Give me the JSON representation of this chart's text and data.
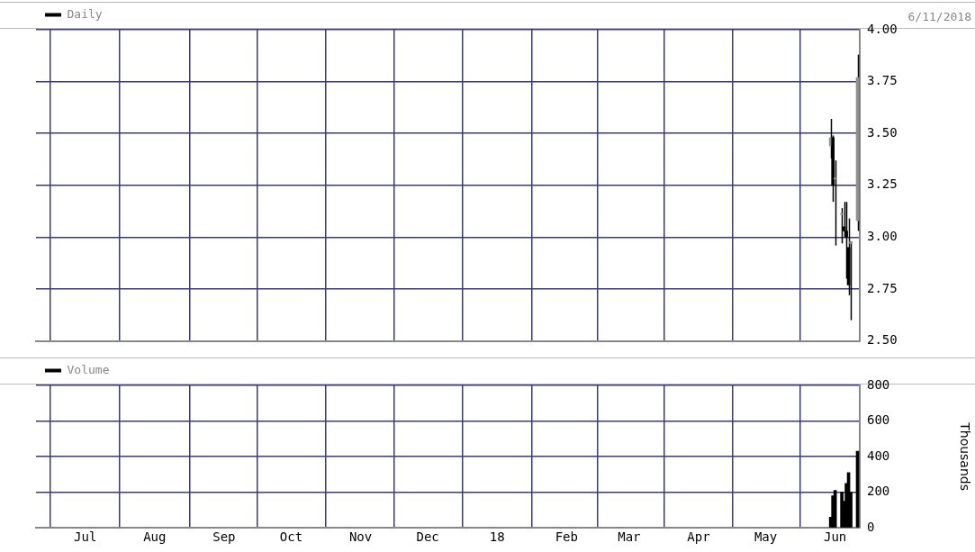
{
  "chart_data": [
    {
      "type": "candlestick",
      "x": [
        "2018-05-30",
        "2018-05-31",
        "2018-06-01",
        "2018-06-04",
        "2018-06-05",
        "2018-06-06",
        "2018-06-07",
        "2018-06-08",
        "2018-06-11"
      ],
      "series": [
        {
          "name": "Daily",
          "color": "#000000",
          "colors": [
            "#909090",
            "#000000",
            "#909090",
            "#909090",
            "#000000",
            "#000000",
            "#000000",
            "#909090",
            "#909090"
          ],
          "ohlc": [
            [
              3.44,
              3.57,
              3.38,
              3.48
            ],
            [
              3.48,
              3.49,
              3.17,
              3.25
            ],
            [
              3.28,
              3.37,
              2.96,
              3.28
            ],
            [
              3.11,
              3.14,
              2.97,
              3.11
            ],
            [
              3.05,
              3.17,
              3.0,
              3.03
            ],
            [
              3.03,
              3.17,
              2.8,
              3.0
            ],
            [
              2.95,
              3.09,
              2.72,
              2.77
            ],
            [
              2.97,
              2.98,
              2.6,
              2.98
            ],
            [
              3.08,
              3.88,
              3.03,
              3.77
            ]
          ]
        }
      ],
      "annotations": [
        "6/11/2018"
      ],
      "xlim": [
        "2017-06-09",
        "2018-06-12"
      ],
      "ylim": [
        2.5,
        4.0
      ],
      "yticks": [
        {
          "value": 2.5,
          "label": "2.50"
        },
        {
          "value": 2.75,
          "label": "2.75"
        },
        {
          "value": 3.0,
          "label": "3.00"
        },
        {
          "value": 3.25,
          "label": "3.25"
        },
        {
          "value": 3.5,
          "label": "3.50"
        },
        {
          "value": 3.75,
          "label": "3.75"
        },
        {
          "value": 4.0,
          "label": "4.00"
        }
      ],
      "xticks": [
        {
          "value": "2017-07-01",
          "label": null
        },
        {
          "value": "2017-08-01",
          "label": null
        },
        {
          "value": "2017-09-01",
          "label": null
        },
        {
          "value": "2017-10-01",
          "label": null
        },
        {
          "value": "2017-11-01",
          "label": null
        },
        {
          "value": "2017-12-01",
          "label": null
        },
        {
          "value": "2018-01-01",
          "label": null
        },
        {
          "value": "2018-02-01",
          "label": null
        },
        {
          "value": "2018-03-01",
          "label": null
        },
        {
          "value": "2018-04-01",
          "label": null
        },
        {
          "value": "2018-05-01",
          "label": null
        },
        {
          "value": "2018-06-01",
          "label": null
        }
      ],
      "tick_labels": "y",
      "grid": true,
      "legend": "top left"
    },
    {
      "type": "bar",
      "x": [
        "2018-05-30",
        "2018-05-31",
        "2018-06-01",
        "2018-06-04",
        "2018-06-05",
        "2018-06-06",
        "2018-06-07",
        "2018-06-08",
        "2018-06-11"
      ],
      "series": [
        {
          "name": "Volume",
          "color": "#000000",
          "values": [
            60,
            180,
            210,
            200,
            150,
            250,
            310,
            200,
            430
          ]
        }
      ],
      "ylabel": "Thousands",
      "xlim": [
        "2017-06-09",
        "2018-06-12"
      ],
      "ylim": [
        0,
        800
      ],
      "yticks": [
        0,
        200,
        400,
        600,
        800
      ],
      "xticks": [
        {
          "value": "2017-07-01",
          "label": "Jul"
        },
        {
          "value": "2017-08-01",
          "label": "Aug"
        },
        {
          "value": "2017-09-01",
          "label": "Sep"
        },
        {
          "value": "2017-10-01",
          "label": "Oct"
        },
        {
          "value": "2017-11-01",
          "label": "Nov"
        },
        {
          "value": "2017-12-01",
          "label": "Dec"
        },
        {
          "value": "2018-01-01",
          "label": "18"
        },
        {
          "value": "2018-02-01",
          "label": "Feb"
        },
        {
          "value": "2018-03-01",
          "label": "Mar"
        },
        {
          "value": "2018-04-01",
          "label": "Apr"
        },
        {
          "value": "2018-05-01",
          "label": "May"
        },
        {
          "value": "2018-06-01",
          "label": "Jun"
        }
      ],
      "grid": true,
      "legend": "top left"
    }
  ]
}
